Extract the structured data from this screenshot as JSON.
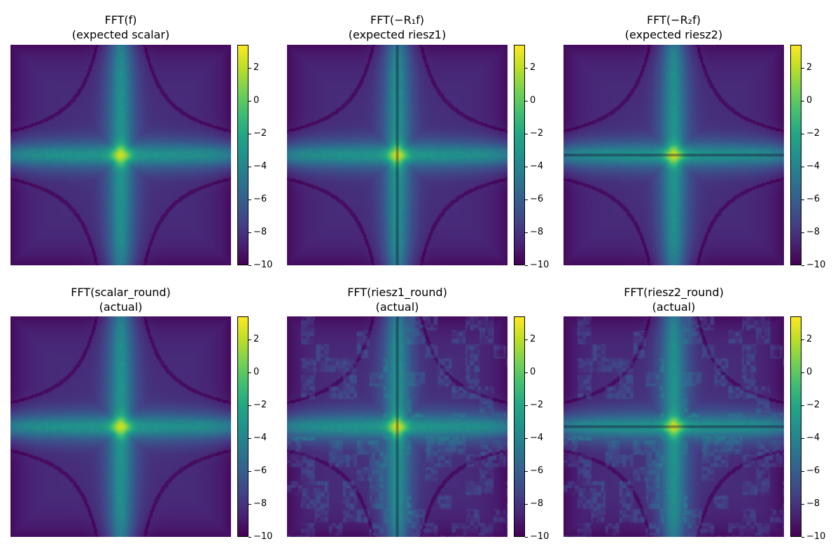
{
  "chart_data": [
    {
      "type": "heatmap",
      "title_line1": "FFT(f)",
      "title_line2": "(expected scalar)",
      "variant": "scalar",
      "colorbar": {
        "range": [
          -10,
          3.4
        ],
        "ticks": [
          "2",
          "0",
          "−2",
          "−4",
          "−6",
          "−8",
          "−10"
        ]
      }
    },
    {
      "type": "heatmap",
      "title_line1": "FFT(−R₁f)",
      "title_line2": "(expected riesz1)",
      "variant": "riesz1",
      "colorbar": {
        "range": [
          -10,
          3.4
        ],
        "ticks": [
          "2",
          "0",
          "−2",
          "−4",
          "−6",
          "−8",
          "−10"
        ]
      }
    },
    {
      "type": "heatmap",
      "title_line1": "FFT(−R₂f)",
      "title_line2": "(expected riesz2)",
      "variant": "riesz2",
      "colorbar": {
        "range": [
          -10,
          3.4
        ],
        "ticks": [
          "2",
          "0",
          "−2",
          "−4",
          "−6",
          "−8",
          "−10"
        ]
      }
    },
    {
      "type": "heatmap",
      "title_line1": "FFT(scalar_round)",
      "title_line2": "(actual)",
      "variant": "scalar",
      "colorbar": {
        "range": [
          -10,
          3.4
        ],
        "ticks": [
          "2",
          "0",
          "−2",
          "−4",
          "−6",
          "−8",
          "−10"
        ]
      }
    },
    {
      "type": "heatmap",
      "title_line1": "FFT(riesz1_round)",
      "title_line2": "(actual)",
      "variant": "riesz1_actual",
      "colorbar": {
        "range": [
          -10,
          3.4
        ],
        "ticks": [
          "2",
          "0",
          "−2",
          "−4",
          "−6",
          "−8",
          "−10"
        ]
      }
    },
    {
      "type": "heatmap",
      "title_line1": "FFT(riesz2_round)",
      "title_line2": "(actual)",
      "variant": "riesz2_actual",
      "colorbar": {
        "range": [
          -10,
          3.4
        ],
        "ticks": [
          "2",
          "0",
          "−2",
          "−4",
          "−6",
          "−8",
          "−10"
        ]
      }
    }
  ],
  "colormap": "viridis"
}
